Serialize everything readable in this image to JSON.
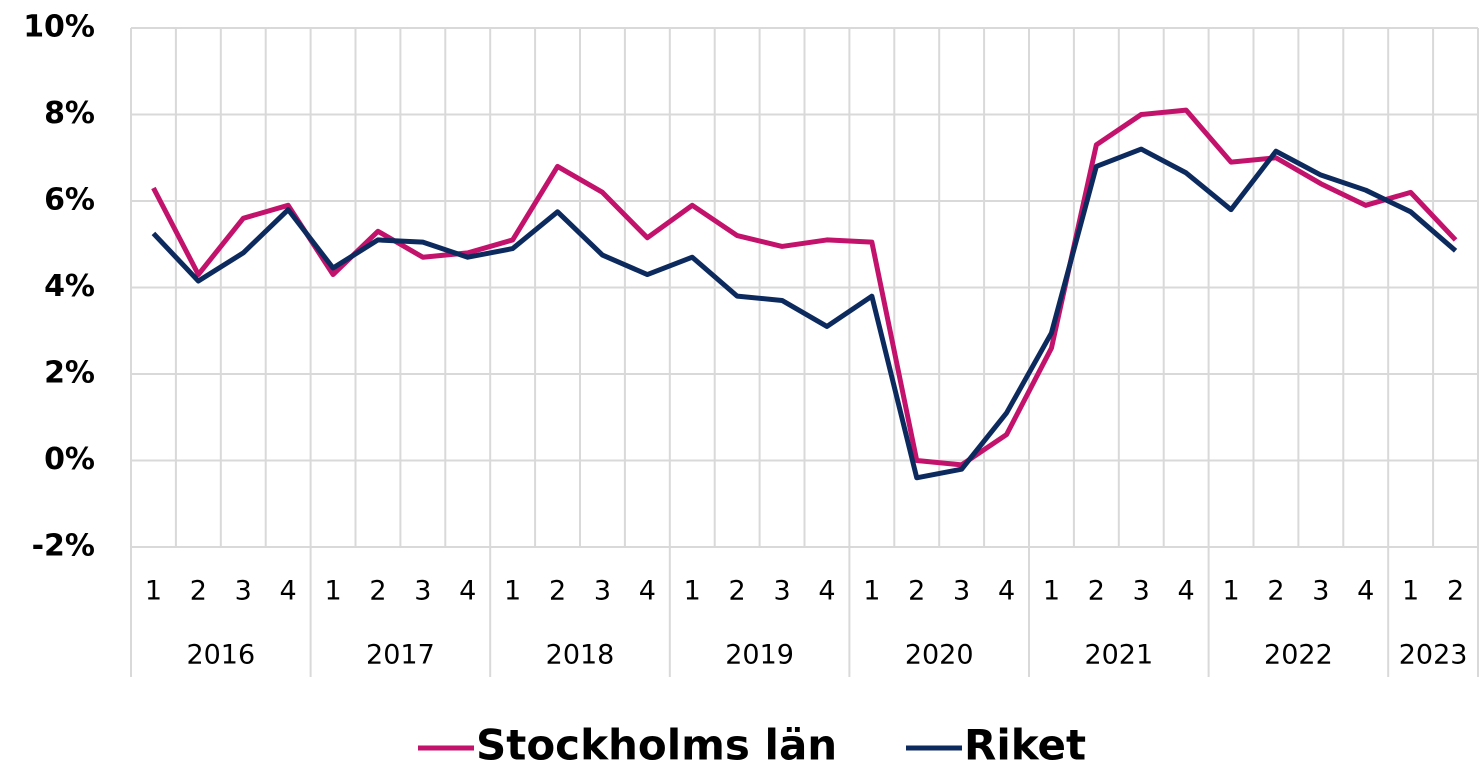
{
  "chart_data": {
    "type": "line",
    "categories": [
      "1",
      "2",
      "3",
      "4",
      "1",
      "2",
      "3",
      "4",
      "1",
      "2",
      "3",
      "4",
      "1",
      "2",
      "3",
      "4",
      "1",
      "2",
      "3",
      "4",
      "1",
      "2",
      "3",
      "4",
      "1",
      "2",
      "3",
      "4",
      "1",
      "2"
    ],
    "years": [
      "2016",
      "2017",
      "2018",
      "2019",
      "2020",
      "2021",
      "2022",
      "2023"
    ],
    "series": [
      {
        "name": "Stockholms län",
        "color": "#c2126b",
        "values": [
          6.3,
          4.3,
          5.6,
          5.9,
          4.3,
          5.3,
          4.7,
          4.8,
          5.1,
          6.8,
          6.2,
          5.15,
          5.9,
          5.2,
          4.95,
          5.1,
          5.05,
          0.0,
          -0.1,
          0.6,
          2.6,
          7.3,
          8.0,
          8.1,
          6.9,
          7.0,
          6.4,
          5.9,
          6.2,
          5.1
        ]
      },
      {
        "name": "Riket",
        "color": "#0d2a5e",
        "values": [
          5.25,
          4.15,
          4.8,
          5.8,
          4.45,
          5.1,
          5.05,
          4.7,
          4.9,
          5.75,
          4.75,
          4.3,
          4.7,
          3.8,
          3.7,
          3.1,
          3.8,
          -0.4,
          -0.2,
          1.1,
          2.95,
          6.8,
          7.2,
          6.65,
          5.8,
          7.15,
          6.6,
          6.25,
          5.75,
          4.85
        ]
      }
    ],
    "ylim": [
      -2,
      10
    ],
    "yticks": [
      {
        "value": -2,
        "label": "-2%"
      },
      {
        "value": 0,
        "label": "0%"
      },
      {
        "value": 2,
        "label": "2%"
      },
      {
        "value": 4,
        "label": "4%"
      },
      {
        "value": 6,
        "label": "6%"
      },
      {
        "value": 8,
        "label": "8%"
      },
      {
        "value": 10,
        "label": "10%"
      }
    ],
    "grid": true
  }
}
